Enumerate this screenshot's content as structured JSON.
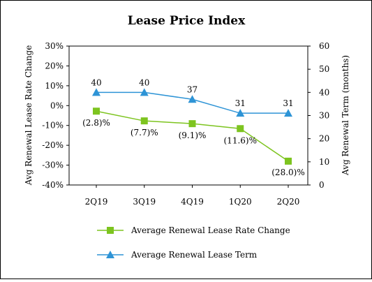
{
  "chart_data": {
    "type": "line",
    "title": "Lease Price Index",
    "categories": [
      "2Q19",
      "3Q19",
      "4Q19",
      "1Q20",
      "2Q20"
    ],
    "ylabel": "Avg Renewal Lease Rate Change",
    "y2label": "Avg Renewal Term (months)",
    "ylim": [
      -40,
      30
    ],
    "y_ticks": [
      "30%",
      "20%",
      "10%",
      "0%",
      "-10%",
      "-20%",
      "-30%",
      "-40%"
    ],
    "y_tick_values": [
      30,
      20,
      10,
      0,
      -10,
      -20,
      -30,
      -40
    ],
    "y2lim": [
      0,
      60
    ],
    "y2_ticks": [
      "60",
      "50",
      "40",
      "30",
      "20",
      "10",
      "0"
    ],
    "y2_tick_values": [
      60,
      50,
      40,
      30,
      20,
      10,
      0
    ],
    "grid": false,
    "legend_position": "bottom",
    "series": [
      {
        "name": "Average Renewal Lease Rate Change",
        "axis": "left",
        "values": [
          -2.8,
          -7.7,
          -9.1,
          -11.6,
          -28.0
        ],
        "labels": [
          "(2.8)%",
          "(7.7)%",
          "(9.1)%",
          "(11.6)%",
          "(28.0)%"
        ],
        "color": "#7dc41f",
        "marker": "square"
      },
      {
        "name": "Average Renewal Lease Term",
        "axis": "right",
        "values": [
          40,
          40,
          37,
          31,
          31
        ],
        "labels": [
          "40",
          "40",
          "37",
          "31",
          "31"
        ],
        "color": "#2e94d6",
        "marker": "triangle"
      }
    ]
  }
}
